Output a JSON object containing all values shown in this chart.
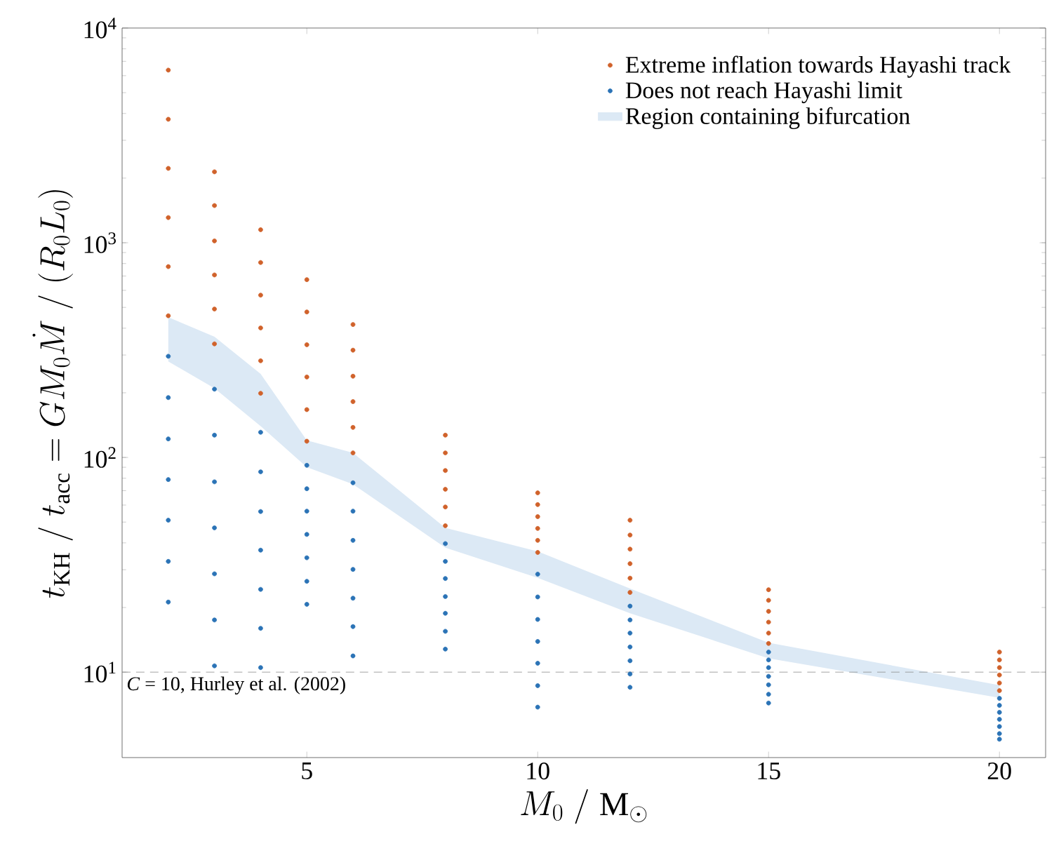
{
  "chart_data": {
    "type": "scatter",
    "xlabel": "M_0\\;/\\;\\mathrm{M}_\\odot",
    "ylabel": "t_\\mathrm{KH}\\;/\\;t_\\mathrm{acc} = G M_0 \\dot{M}\\;/\\;(R_0 L_0)",
    "log": "y",
    "marker": "circle",
    "legend": "top right",
    "xlim": [
      1,
      21
    ],
    "xticks": [
      5,
      10,
      15,
      20
    ],
    "ylim": [
      4,
      10000
    ],
    "yticks": [
      {
        "value": 10,
        "label": "10$^{1}$"
      },
      {
        "value": 100,
        "label": "10$^{2}$"
      },
      {
        "value": 1000,
        "label": "10$^{3}$"
      },
      {
        "value": 10000,
        "label": "10$^{4}$"
      }
    ],
    "ref_lines": [
      {
        "axis": "y",
        "value": 10,
        "label": "*C* = 10, Hurley et al. (2002)",
        "color": "#8c8c8c",
        "line_style": "dashed"
      }
    ],
    "series": [
      {
        "name": "Extreme inflation towards Hayashi track",
        "color": "#d0622b",
        "x": [
          2,
          2,
          2,
          2,
          2,
          2,
          3,
          3,
          3,
          3,
          3,
          3,
          4,
          4,
          4,
          4,
          4,
          4,
          5,
          5,
          5,
          5,
          5,
          5,
          6,
          6,
          6,
          6,
          6,
          6,
          8,
          8,
          8,
          8,
          8,
          8,
          10,
          10,
          10,
          10,
          10,
          10,
          12,
          12,
          12,
          12,
          12,
          12,
          15,
          15,
          15,
          15,
          15,
          15,
          20,
          20,
          20,
          20,
          20,
          20
        ],
        "values": [
          6370,
          3760,
          2220,
          1310,
          774,
          457,
          2140,
          1490,
          1020,
          708,
          491,
          338,
          1150,
          809,
          570,
          401,
          282,
          199,
          673,
          476,
          335,
          237,
          167,
          119,
          416,
          316,
          239,
          182,
          138,
          105,
          127,
          105,
          86.9,
          71.1,
          58.8,
          48.1,
          68.4,
          60.3,
          53,
          46.7,
          41.1,
          36.1,
          51,
          43.5,
          37.4,
          32,
          27.4,
          23.5,
          24.2,
          21.6,
          19.2,
          17.1,
          15.2,
          13.6,
          12.4,
          11.4,
          10.5,
          9.7,
          8.9,
          8.2
        ]
      },
      {
        "name": "Does not reach Hayashi limit",
        "color": "#2b73b6",
        "x": [
          2,
          2,
          2,
          2,
          2,
          2,
          2,
          3,
          3,
          3,
          3,
          3,
          3,
          3,
          4,
          4,
          4,
          4,
          4,
          4,
          4,
          5,
          5,
          5,
          5,
          5,
          5,
          5,
          6,
          6,
          6,
          6,
          6,
          6,
          6,
          8,
          8,
          8,
          8,
          8,
          8,
          8,
          10,
          10,
          10,
          10,
          10,
          10,
          10,
          12,
          12,
          12,
          12,
          12,
          12,
          12,
          15,
          15,
          15,
          15,
          15,
          15,
          15,
          20,
          20,
          20,
          20,
          20,
          20,
          20
        ],
        "values": [
          296,
          190,
          122,
          78.9,
          51,
          32.8,
          21.2,
          208,
          127,
          77,
          47,
          28.7,
          17.5,
          10.7,
          131,
          85.7,
          56,
          37,
          24.3,
          16,
          10.5,
          91.9,
          71.5,
          56.2,
          43.8,
          34.1,
          26.5,
          20.7,
          76.2,
          56.2,
          41.1,
          30.1,
          22.1,
          16.3,
          11.9,
          39.7,
          32.8,
          27.3,
          22.5,
          18.8,
          15.5,
          12.8,
          28.6,
          22.4,
          17.6,
          13.9,
          11,
          8.65,
          6.87,
          20.3,
          17.5,
          15.2,
          13.1,
          11.3,
          9.8,
          8.5,
          12.4,
          11.4,
          10.5,
          9.56,
          8.73,
          7.89,
          7.18,
          7.55,
          7,
          6.5,
          6.03,
          5.58,
          5.17,
          4.87
        ]
      },
      {
        "name": "Region containing bifurcation",
        "type": "area",
        "color": "#dce9f5",
        "x": [
          2,
          3,
          4,
          5,
          6,
          8,
          10,
          12,
          15,
          20
        ],
        "values": [
          null,
          null,
          null,
          null,
          null,
          null,
          null,
          null,
          null,
          null
        ],
        "lower": [
          280,
          210,
          140,
          90,
          75,
          38,
          27.5,
          18.8,
          11.6,
          7.6
        ],
        "upper": [
          450,
          365,
          245,
          120,
          105,
          47,
          36.5,
          24.5,
          13.7,
          8.7
        ]
      }
    ]
  }
}
